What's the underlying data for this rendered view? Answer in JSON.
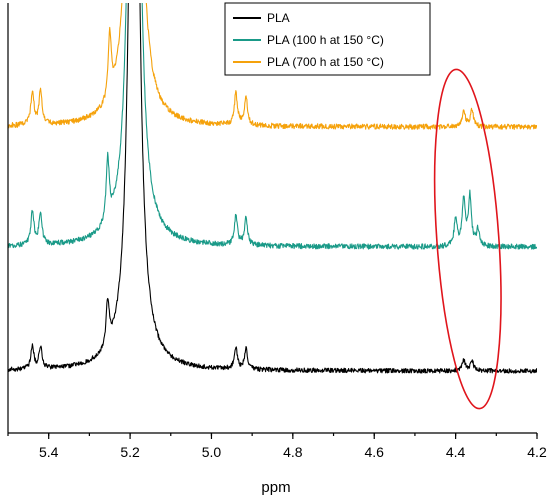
{
  "chart_data": {
    "type": "line",
    "xlabel": "ppm",
    "ylabel": "",
    "x_reversed": true,
    "xlim": [
      5.5,
      4.2
    ],
    "xticks": [
      5.4,
      5.2,
      5.0,
      4.8,
      4.6,
      4.4,
      4.2
    ],
    "xtick_labels": [
      "5.4",
      "5.2",
      "5.0",
      "4.8",
      "4.6",
      "4.4",
      "4.2"
    ],
    "grid": false,
    "legend_position": "top-center",
    "series": [
      {
        "name": "PLA",
        "color": "#000000",
        "peaks": [
          {
            "ppm": 5.44,
            "height": 0.3
          },
          {
            "ppm": 5.42,
            "height": 0.3
          },
          {
            "ppm": 5.255,
            "height": 0.6
          },
          {
            "ppm": 5.19,
            "height": 12
          },
          {
            "ppm": 4.94,
            "height": 0.28
          },
          {
            "ppm": 4.915,
            "height": 0.28
          },
          {
            "ppm": 4.38,
            "height": 0.14
          },
          {
            "ppm": 4.36,
            "height": 0.14
          }
        ]
      },
      {
        "name": "PLA (100 h at 150 °C)",
        "color": "#1a9a88",
        "peaks": [
          {
            "ppm": 5.44,
            "height": 0.45
          },
          {
            "ppm": 5.42,
            "height": 0.42
          },
          {
            "ppm": 5.255,
            "height": 0.85
          },
          {
            "ppm": 5.19,
            "height": 12
          },
          {
            "ppm": 4.94,
            "height": 0.38
          },
          {
            "ppm": 4.915,
            "height": 0.36
          },
          {
            "ppm": 4.4,
            "height": 0.36
          },
          {
            "ppm": 4.38,
            "height": 0.62
          },
          {
            "ppm": 4.365,
            "height": 0.66
          },
          {
            "ppm": 4.345,
            "height": 0.22
          }
        ]
      },
      {
        "name": "PLA (700 h at 150 °C)",
        "color": "#f5a20c",
        "peaks": [
          {
            "ppm": 5.44,
            "height": 0.45
          },
          {
            "ppm": 5.42,
            "height": 0.45
          },
          {
            "ppm": 5.25,
            "height": 0.85
          },
          {
            "ppm": 5.19,
            "height": 12
          },
          {
            "ppm": 4.94,
            "height": 0.42
          },
          {
            "ppm": 4.915,
            "height": 0.38
          },
          {
            "ppm": 4.38,
            "height": 0.22
          },
          {
            "ppm": 4.36,
            "height": 0.22
          }
        ]
      }
    ],
    "annotation": {
      "shape": "ellipse",
      "color": "#e0151c",
      "center_ppm": 4.37
    }
  }
}
